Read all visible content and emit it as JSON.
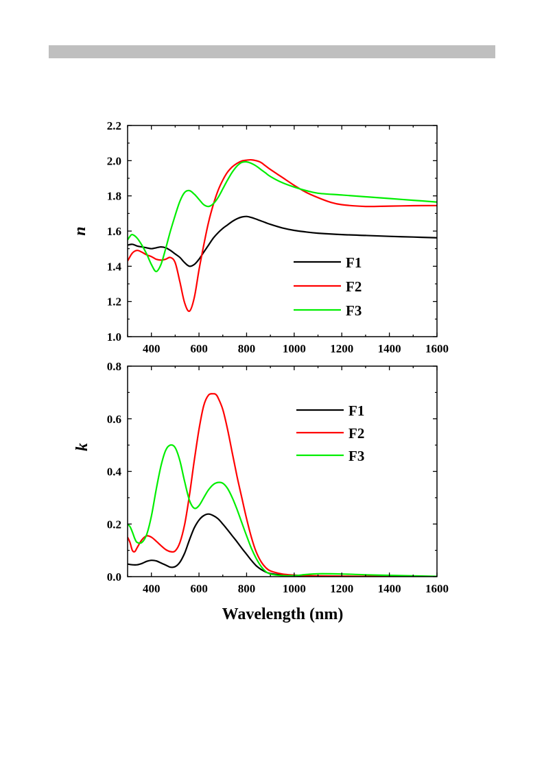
{
  "page": {
    "top_bar_color": "#bfbfbf"
  },
  "chart_data": [
    {
      "type": "line",
      "xlabel": "",
      "ylabel": "n",
      "xlim": [
        300,
        1600
      ],
      "ylim": [
        1.0,
        2.2
      ],
      "x_ticks": [
        "400",
        "600",
        "800",
        "1000",
        "1200",
        "1400",
        "1600"
      ],
      "y_ticks": [
        "1.0",
        "1.2",
        "1.4",
        "1.6",
        "1.8",
        "2.0",
        "2.2"
      ],
      "legend_position": "lower-right",
      "grid": false,
      "series": [
        {
          "name": "F1",
          "color": "#000000",
          "x": [
            300,
            320,
            340,
            360,
            380,
            400,
            420,
            440,
            460,
            480,
            500,
            520,
            540,
            560,
            580,
            600,
            620,
            640,
            660,
            680,
            700,
            720,
            740,
            760,
            780,
            800,
            820,
            840,
            860,
            880,
            900,
            950,
            1000,
            1050,
            1100,
            1200,
            1300,
            1400,
            1500,
            1600
          ],
          "y": [
            1.52,
            1.525,
            1.515,
            1.51,
            1.505,
            1.5,
            1.505,
            1.51,
            1.505,
            1.49,
            1.47,
            1.45,
            1.42,
            1.4,
            1.41,
            1.44,
            1.48,
            1.52,
            1.56,
            1.59,
            1.615,
            1.635,
            1.655,
            1.67,
            1.68,
            1.683,
            1.677,
            1.668,
            1.658,
            1.648,
            1.638,
            1.618,
            1.604,
            1.595,
            1.588,
            1.58,
            1.575,
            1.57,
            1.566,
            1.562
          ]
        },
        {
          "name": "F2",
          "color": "#ff0000",
          "x": [
            300,
            320,
            340,
            360,
            380,
            400,
            420,
            440,
            460,
            480,
            500,
            520,
            540,
            560,
            580,
            600,
            620,
            640,
            660,
            680,
            700,
            720,
            740,
            760,
            780,
            800,
            820,
            840,
            860,
            880,
            900,
            950,
            1000,
            1050,
            1100,
            1150,
            1200,
            1300,
            1400,
            1500,
            1600
          ],
          "y": [
            1.43,
            1.475,
            1.49,
            1.48,
            1.465,
            1.455,
            1.44,
            1.435,
            1.44,
            1.45,
            1.42,
            1.31,
            1.19,
            1.145,
            1.22,
            1.38,
            1.52,
            1.65,
            1.75,
            1.83,
            1.89,
            1.935,
            1.965,
            1.985,
            1.998,
            2.003,
            2.005,
            2.0,
            1.99,
            1.97,
            1.95,
            1.905,
            1.86,
            1.82,
            1.79,
            1.765,
            1.75,
            1.74,
            1.742,
            1.744,
            1.745
          ]
        },
        {
          "name": "F3",
          "color": "#00ee00",
          "x": [
            300,
            310,
            320,
            340,
            360,
            380,
            400,
            420,
            440,
            460,
            480,
            500,
            520,
            540,
            560,
            580,
            600,
            620,
            640,
            660,
            680,
            700,
            720,
            740,
            760,
            780,
            800,
            820,
            840,
            860,
            880,
            900,
            950,
            1000,
            1050,
            1100,
            1200,
            1300,
            1400,
            1500,
            1600
          ],
          "y": [
            1.55,
            1.57,
            1.58,
            1.56,
            1.52,
            1.47,
            1.41,
            1.37,
            1.41,
            1.5,
            1.6,
            1.69,
            1.77,
            1.82,
            1.83,
            1.81,
            1.78,
            1.75,
            1.74,
            1.755,
            1.79,
            1.84,
            1.89,
            1.935,
            1.97,
            1.99,
            1.993,
            1.985,
            1.97,
            1.95,
            1.93,
            1.91,
            1.875,
            1.85,
            1.83,
            1.815,
            1.805,
            1.795,
            1.785,
            1.775,
            1.765
          ]
        }
      ]
    },
    {
      "type": "line",
      "xlabel": "Wavelength (nm)",
      "ylabel": "k",
      "xlim": [
        300,
        1600
      ],
      "ylim": [
        0.0,
        0.8
      ],
      "x_ticks": [
        "400",
        "600",
        "800",
        "1000",
        "1200",
        "1400",
        "1600"
      ],
      "y_ticks": [
        "0.0",
        "0.2",
        "0.4",
        "0.6",
        "0.8"
      ],
      "legend_position": "upper-right",
      "grid": false,
      "series": [
        {
          "name": "F1",
          "color": "#000000",
          "x": [
            300,
            320,
            340,
            360,
            380,
            400,
            420,
            440,
            460,
            480,
            500,
            520,
            540,
            560,
            580,
            600,
            620,
            640,
            660,
            680,
            700,
            720,
            740,
            760,
            780,
            800,
            820,
            840,
            860,
            880,
            900,
            950,
            1000,
            1100,
            1200,
            1300,
            1400,
            1500,
            1600
          ],
          "y": [
            0.048,
            0.045,
            0.045,
            0.05,
            0.058,
            0.062,
            0.06,
            0.052,
            0.044,
            0.036,
            0.038,
            0.055,
            0.09,
            0.14,
            0.185,
            0.215,
            0.232,
            0.238,
            0.232,
            0.22,
            0.2,
            0.178,
            0.155,
            0.132,
            0.108,
            0.085,
            0.062,
            0.042,
            0.028,
            0.018,
            0.012,
            0.006,
            0.003,
            0.002,
            0.001,
            0.001,
            0.001,
            0.0,
            0.0
          ]
        },
        {
          "name": "F2",
          "color": "#ff0000",
          "x": [
            300,
            310,
            320,
            330,
            340,
            360,
            380,
            400,
            420,
            440,
            460,
            480,
            500,
            520,
            540,
            560,
            580,
            600,
            620,
            640,
            660,
            670,
            680,
            700,
            720,
            740,
            760,
            780,
            800,
            820,
            840,
            860,
            880,
            900,
            950,
            1000,
            1050,
            1100,
            1200,
            1300,
            1400,
            1500,
            1600
          ],
          "y": [
            0.15,
            0.13,
            0.1,
            0.095,
            0.11,
            0.14,
            0.155,
            0.15,
            0.135,
            0.118,
            0.103,
            0.095,
            0.098,
            0.13,
            0.2,
            0.31,
            0.44,
            0.56,
            0.65,
            0.69,
            0.695,
            0.693,
            0.68,
            0.635,
            0.56,
            0.47,
            0.38,
            0.3,
            0.22,
            0.15,
            0.095,
            0.058,
            0.035,
            0.022,
            0.01,
            0.006,
            0.004,
            0.003,
            0.002,
            0.001,
            0.001,
            0.0,
            0.0
          ]
        },
        {
          "name": "F3",
          "color": "#00ee00",
          "x": [
            300,
            310,
            320,
            330,
            340,
            360,
            380,
            400,
            420,
            440,
            460,
            480,
            500,
            520,
            540,
            560,
            580,
            600,
            620,
            640,
            660,
            680,
            700,
            720,
            740,
            760,
            780,
            800,
            820,
            840,
            860,
            880,
            900,
            950,
            1000,
            1050,
            1100,
            1200,
            1300,
            1400,
            1500,
            1600
          ],
          "y": [
            0.2,
            0.19,
            0.17,
            0.145,
            0.13,
            0.13,
            0.16,
            0.23,
            0.33,
            0.42,
            0.48,
            0.5,
            0.49,
            0.44,
            0.36,
            0.29,
            0.26,
            0.27,
            0.3,
            0.33,
            0.35,
            0.358,
            0.355,
            0.335,
            0.3,
            0.255,
            0.205,
            0.155,
            0.108,
            0.07,
            0.04,
            0.02,
            0.01,
            0.004,
            0.004,
            0.008,
            0.011,
            0.01,
            0.007,
            0.005,
            0.003,
            0.001
          ]
        }
      ]
    }
  ]
}
